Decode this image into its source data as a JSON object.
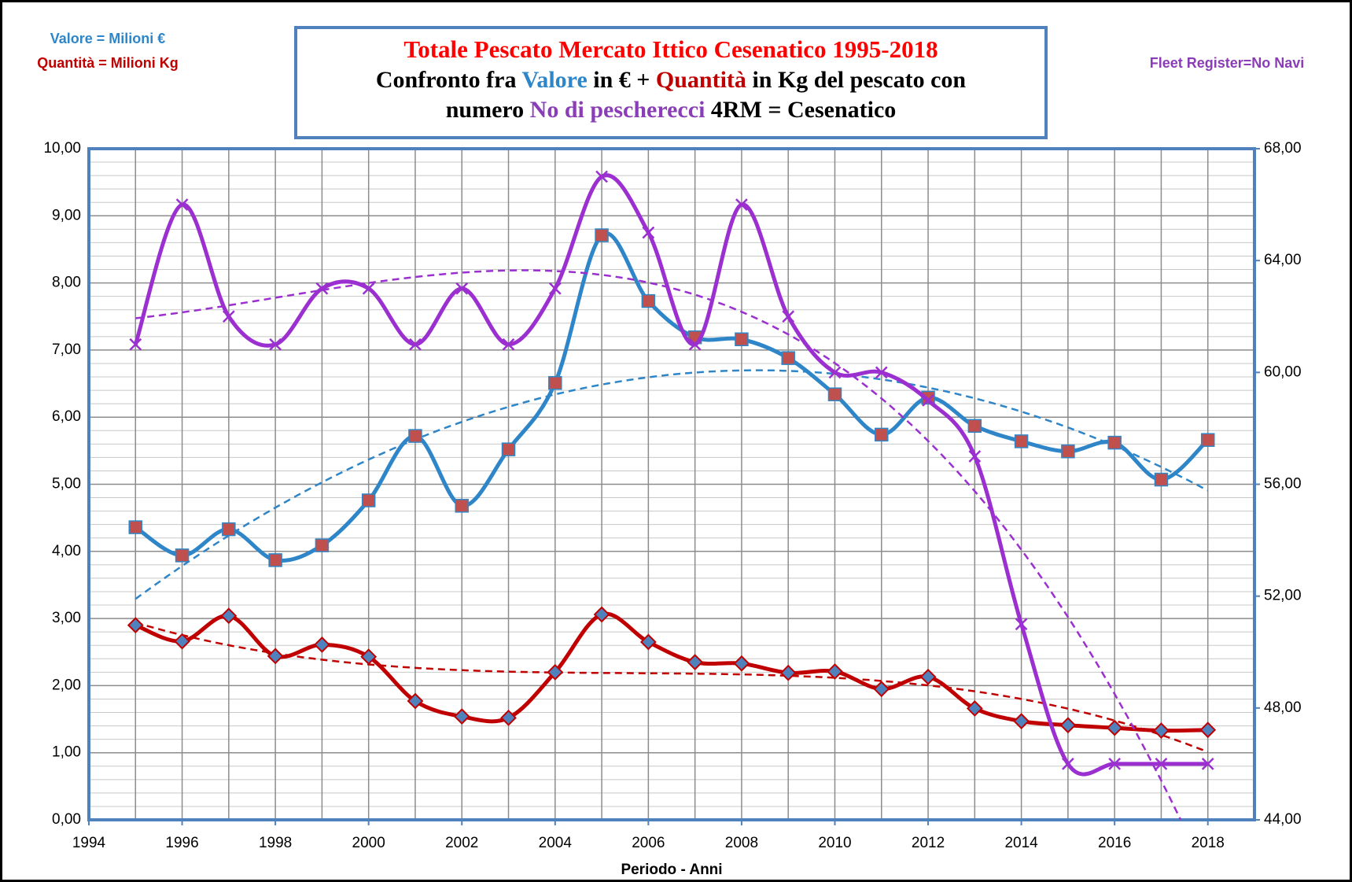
{
  "chart_data": {
    "type": "line",
    "title_lines": [
      [
        {
          "text": "Totale Pescato Mercato Ittico Cesenatico 1995-2018",
          "color": "#ff0000"
        }
      ],
      [
        {
          "text": "Confronto fra ",
          "color": "#000000"
        },
        {
          "text": "Valore",
          "color": "#2e86c8"
        },
        {
          "text": " in € + ",
          "color": "#000000"
        },
        {
          "text": "Quantità",
          "color": "#c00000"
        },
        {
          "text": " in Kg del pescato con",
          "color": "#000000"
        }
      ],
      [
        {
          "text": "numero ",
          "color": "#000000"
        },
        {
          "text": "No di pescherecci",
          "color": "#8a3db6"
        },
        {
          "text": " 4RM = Cesenatico",
          "color": "#000000"
        }
      ]
    ],
    "note_left_1": "Valore = Milioni €",
    "note_left_2": "Quantità = Milioni Kg",
    "note_right": "Fleet Register=No Navi",
    "x_label": "Periodo - Anni",
    "x": [
      1995,
      1996,
      1997,
      1998,
      1999,
      2000,
      2001,
      2002,
      2003,
      2004,
      2005,
      2006,
      2007,
      2008,
      2009,
      2010,
      2011,
      2012,
      2013,
      2014,
      2015,
      2016,
      2017,
      2018
    ],
    "xlim": [
      1994,
      2019
    ],
    "xticks": [
      1994,
      1996,
      1998,
      2000,
      2002,
      2004,
      2006,
      2008,
      2010,
      2012,
      2014,
      2016,
      2018
    ],
    "ylim": [
      0,
      10
    ],
    "yticks": [
      {
        "value": 0,
        "label": "0,00"
      },
      {
        "value": 1,
        "label": "1,00"
      },
      {
        "value": 2,
        "label": "2,00"
      },
      {
        "value": 3,
        "label": "3,00"
      },
      {
        "value": 4,
        "label": "4,00"
      },
      {
        "value": 5,
        "label": "5,00"
      },
      {
        "value": 6,
        "label": "6,00"
      },
      {
        "value": 7,
        "label": "7,00"
      },
      {
        "value": 8,
        "label": "8,00"
      },
      {
        "value": 9,
        "label": "9,00"
      },
      {
        "value": 10,
        "label": "10,00"
      }
    ],
    "y2lim": [
      44,
      68
    ],
    "y2ticks": [
      {
        "value": 44,
        "label": "44,00"
      },
      {
        "value": 48,
        "label": "48,00"
      },
      {
        "value": 52,
        "label": "52,00"
      },
      {
        "value": 56,
        "label": "56,00"
      },
      {
        "value": 60,
        "label": "60,00"
      },
      {
        "value": 64,
        "label": "64,00"
      },
      {
        "value": 68,
        "label": "68,00"
      }
    ],
    "grid": true,
    "smooth": true,
    "series": [
      {
        "color": "#2e86c8",
        "marker": "square",
        "marker_fill": "#c0504d",
        "trend_order": 2,
        "values": [
          4.36,
          3.94,
          4.33,
          3.87,
          4.09,
          4.76,
          5.72,
          4.68,
          5.52,
          6.51,
          8.71,
          7.73,
          7.19,
          7.16,
          6.88,
          6.34,
          5.74,
          6.29,
          5.87,
          5.64,
          5.49,
          5.62,
          5.07,
          5.66
        ]
      },
      {
        "color": "#c00000",
        "marker": "diamond",
        "marker_fill": "#4f81bd",
        "trend_order": 3,
        "values": [
          2.9,
          2.66,
          3.04,
          2.44,
          2.61,
          2.43,
          1.77,
          1.54,
          1.52,
          2.2,
          3.06,
          2.65,
          2.35,
          2.33,
          2.19,
          2.21,
          1.95,
          2.13,
          1.66,
          1.47,
          1.41,
          1.37,
          1.33,
          1.34
        ]
      },
      {
        "color": "#9b2fd0",
        "marker": "cross",
        "marker_fill": "#9b2fd0",
        "trend_order": 3,
        "axis": "y2",
        "values": [
          61,
          66,
          62,
          61,
          63,
          63,
          61,
          63,
          61,
          63,
          67,
          65,
          61,
          66,
          62,
          60,
          60,
          59,
          57,
          51,
          46,
          46,
          46,
          46
        ]
      }
    ]
  }
}
